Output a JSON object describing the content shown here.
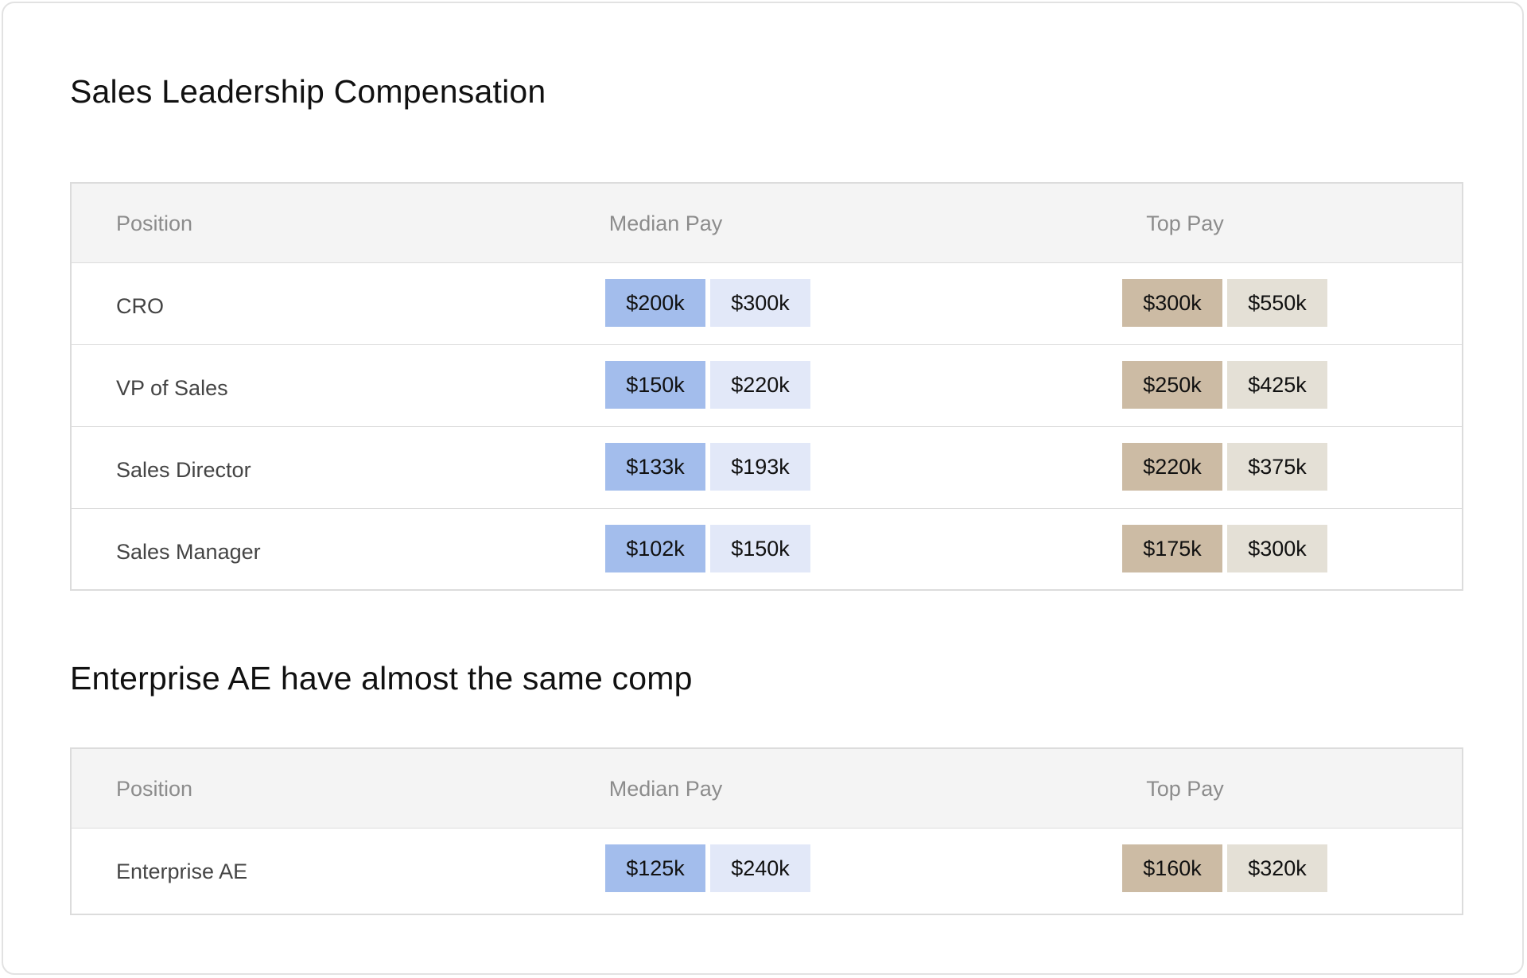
{
  "colors": {
    "median_low_bg": "#a3bdec",
    "median_high_bg": "#e2e8f8",
    "top_low_bg": "#ccbba4",
    "top_high_bg": "#e4e0d6",
    "header_bg": "#f4f4f4",
    "header_text": "#8c8c8c"
  },
  "sections": [
    {
      "title": "Sales Leadership Compensation",
      "columns": {
        "position": "Position",
        "median": "Median Pay",
        "top": "Top Pay"
      },
      "rows": [
        {
          "position": "CRO",
          "median_low": "$200k",
          "median_high": "$300k",
          "top_low": "$300k",
          "top_high": "$550k"
        },
        {
          "position": "VP of Sales",
          "median_low": "$150k",
          "median_high": "$220k",
          "top_low": "$250k",
          "top_high": "$425k"
        },
        {
          "position": "Sales Director",
          "median_low": "$133k",
          "median_high": "$193k",
          "top_low": "$220k",
          "top_high": "$375k"
        },
        {
          "position": "Sales Manager",
          "median_low": "$102k",
          "median_high": "$150k",
          "top_low": "$175k",
          "top_high": "$300k"
        }
      ]
    },
    {
      "title": "Enterprise AE have almost the same comp",
      "columns": {
        "position": "Position",
        "median": "Median Pay",
        "top": "Top Pay"
      },
      "rows": [
        {
          "position": "Enterprise AE",
          "median_low": "$125k",
          "median_high": "$240k",
          "top_low": "$160k",
          "top_high": "$320k"
        }
      ]
    }
  ]
}
